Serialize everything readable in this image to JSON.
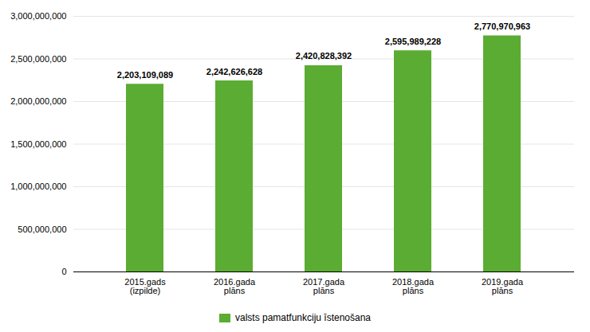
{
  "chart_data": {
    "type": "bar",
    "categories": [
      "2015.gads\n(izpilde)",
      "2016.gada\nplāns",
      "2017.gada\nplāns",
      "2018.gada\nplāns",
      "2019.gada\nplāns"
    ],
    "series": [
      {
        "name": "valsts pamatfunkciju īstenošana",
        "color": "#5aac32",
        "values": [
          2203109089,
          2242626628,
          2420828392,
          2595989228,
          2770970963
        ],
        "value_labels": [
          "2,203,109,089",
          "2,242,626,628",
          "2,420,828,392",
          "2,595,989,228",
          "2,770,970,963"
        ]
      }
    ],
    "data_labels": true,
    "ylim": [
      0,
      3000000000
    ],
    "yticks": [
      0,
      {
        "value": 500000000,
        "label": "500,000,000"
      },
      {
        "value": 1000000000,
        "label": "1,000,000,000"
      },
      {
        "value": 1500000000,
        "label": "1,500,000,000"
      },
      {
        "value": 2000000000,
        "label": "2,000,000,000"
      },
      {
        "value": 2500000000,
        "label": "2,500,000,000"
      },
      {
        "value": 3000000000,
        "label": "3,000,000,000"
      }
    ],
    "grid": true,
    "legend": "bottom"
  }
}
